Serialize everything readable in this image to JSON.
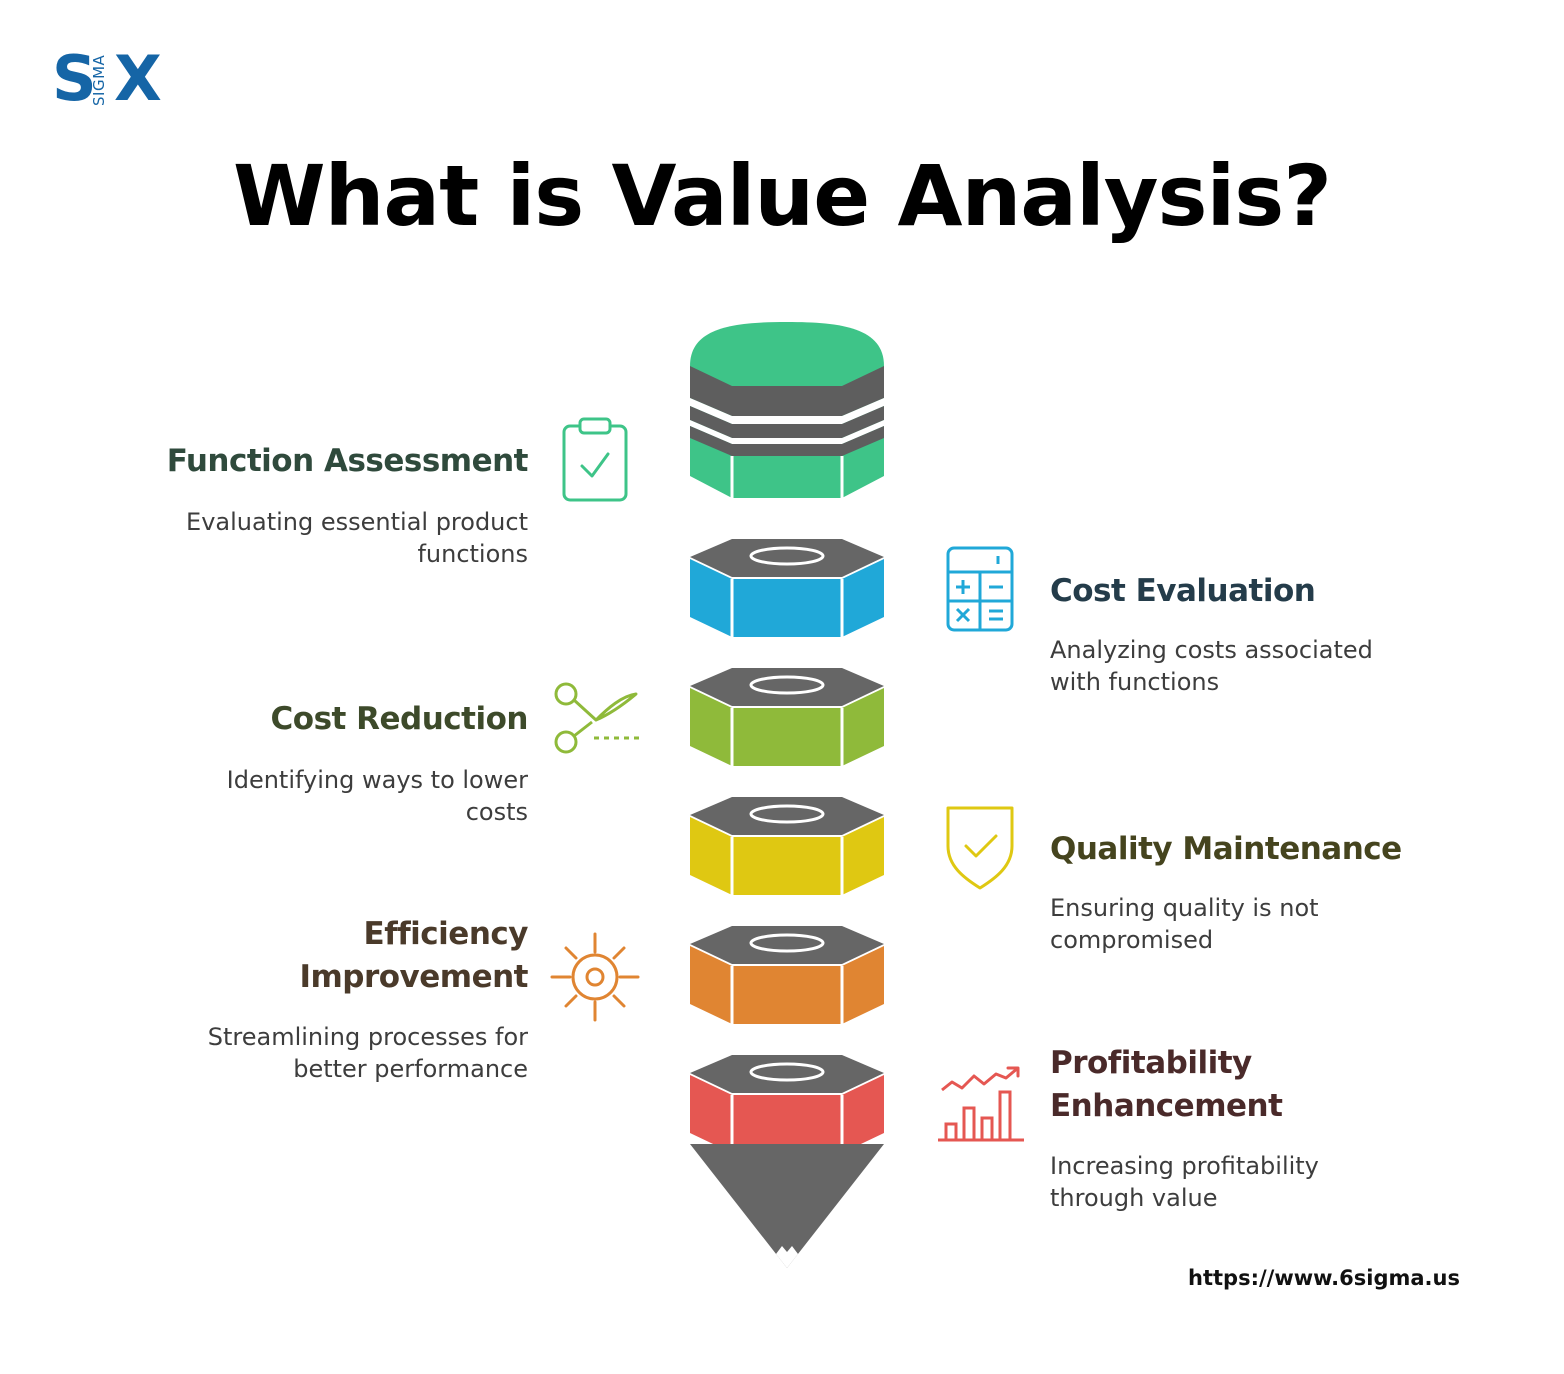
{
  "logo": {
    "letter_s": "S",
    "letter_x": "X",
    "sigma_text": "SIGMA",
    "color": "#1565a6"
  },
  "title": "What is Value Analysis?",
  "steps": [
    {
      "heading": "Function Assessment",
      "description": "Evaluating essential product functions",
      "color": "#3ec488",
      "icon": "clipboard-check-icon",
      "side": "left"
    },
    {
      "heading": "Cost Evaluation",
      "description": "Analyzing costs associated with functions",
      "color": "#20a8d8",
      "icon": "calculator-icon",
      "side": "right"
    },
    {
      "heading": "Cost Reduction",
      "description": "Identifying ways to lower costs",
      "color": "#8fba3a",
      "icon": "scissors-icon",
      "side": "left"
    },
    {
      "heading": "Quality Maintenance",
      "description": "Ensuring quality is not compromised",
      "color": "#dfc812",
      "icon": "shield-check-icon",
      "side": "right"
    },
    {
      "heading": "Efficiency Improvement",
      "description": "Streamlining processes for better performance",
      "color": "#e08532",
      "icon": "gear-icon",
      "side": "left"
    },
    {
      "heading": "Profitability Enhancement",
      "description": "Increasing profitability through value",
      "color": "#e55752",
      "icon": "growth-chart-icon",
      "side": "right"
    }
  ],
  "stack_top_color": "#666666",
  "url": "https://www.6sigma.us"
}
